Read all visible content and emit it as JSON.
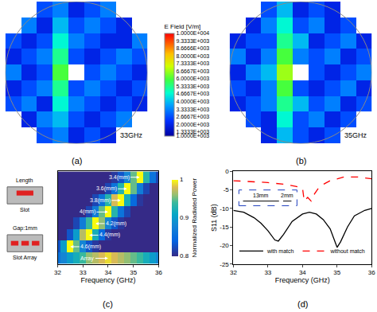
{
  "chart_data": [
    {
      "type": "heatmap",
      "panel": "(a)",
      "annotations": [
        "33GHz"
      ],
      "tick_labels": false,
      "z": [
        [
          null,
          null,
          2700,
          3300,
          2000,
          2700,
          2000,
          null,
          null
        ],
        [
          null,
          2000,
          3300,
          4000,
          2700,
          2000,
          2700,
          3300,
          null
        ],
        [
          2700,
          3300,
          2000,
          4700,
          3300,
          2700,
          2000,
          2700,
          2000
        ],
        [
          2000,
          2700,
          3300,
          5300,
          2700,
          3300,
          2700,
          2000,
          2700
        ],
        [
          3300,
          2000,
          2700,
          6000,
          null,
          2700,
          3300,
          2700,
          2000
        ],
        [
          2000,
          2700,
          3300,
          5300,
          2700,
          2000,
          2700,
          3300,
          2700
        ],
        [
          2700,
          2000,
          2700,
          4700,
          3300,
          2700,
          2000,
          2000,
          3300
        ],
        [
          null,
          3300,
          2000,
          4000,
          2700,
          3300,
          2700,
          2000,
          null
        ],
        [
          null,
          null,
          2700,
          3300,
          2000,
          2700,
          3300,
          null,
          null
        ]
      ]
    },
    {
      "type": "heatmap",
      "panel": "(b)",
      "annotations": [
        "35GHz"
      ],
      "tick_labels": false,
      "z": [
        [
          null,
          null,
          2000,
          4000,
          2700,
          2000,
          2700,
          null,
          null
        ],
        [
          null,
          2700,
          2000,
          4700,
          2700,
          3300,
          2000,
          2700,
          null
        ],
        [
          2000,
          2700,
          3300,
          5300,
          4000,
          2700,
          3300,
          2000,
          2700
        ],
        [
          2700,
          2000,
          3300,
          6000,
          2700,
          2000,
          2700,
          3300,
          2000
        ],
        [
          2000,
          3300,
          4000,
          6700,
          null,
          2700,
          2000,
          2700,
          3300
        ],
        [
          3300,
          2000,
          3300,
          6000,
          3300,
          2700,
          3300,
          2000,
          2700
        ],
        [
          2000,
          2700,
          2700,
          5300,
          4000,
          2000,
          2700,
          3300,
          2000
        ],
        [
          null,
          2000,
          3300,
          4700,
          2700,
          3300,
          2000,
          2700,
          null
        ],
        [
          null,
          null,
          2700,
          4000,
          2000,
          2700,
          2000,
          null,
          null
        ]
      ]
    },
    {
      "type": "colorbar",
      "title": "E Field [V/m]",
      "range": [
        1000,
        10000
      ],
      "ticks": [
        {
          "value": 10000,
          "label": "1.0000E+004"
        },
        {
          "value": 9333.3,
          "label": "9.3333E+003"
        },
        {
          "value": 8666.6,
          "label": "8.6666E+003"
        },
        {
          "value": 8000,
          "label": "8.0000E+003"
        },
        {
          "value": 7333.3,
          "label": "7.3333E+003"
        },
        {
          "value": 6666.7,
          "label": "6.6667E+003"
        },
        {
          "value": 6000,
          "label": "6.0000E+003"
        },
        {
          "value": 5333.3,
          "label": "5.3333E+003"
        },
        {
          "value": 4666.7,
          "label": "4.6667E+003"
        },
        {
          "value": 4000,
          "label": "4.0000E+003"
        },
        {
          "value": 3333.3,
          "label": "3.3333E+003"
        },
        {
          "value": 2666.7,
          "label": "2.6667E+003"
        },
        {
          "value": 2000,
          "label": "2.0000E+003"
        },
        {
          "value": 1333.3,
          "label": "1.3333E+003"
        },
        {
          "value": 1000,
          "label": "1.0000E+003"
        }
      ]
    },
    {
      "type": "heatmap",
      "panel": "(c)",
      "xlabel": "Frequency (GHz)",
      "tick_labels": "x",
      "xlim": [
        32,
        36
      ],
      "xticks": [
        32,
        33,
        34,
        35,
        36
      ],
      "x": [
        32,
        32.25,
        32.5,
        32.75,
        33,
        33.25,
        33.5,
        33.75,
        34,
        34.25,
        34.5,
        34.75,
        35,
        35.25,
        35.5,
        35.75,
        36
      ],
      "rows": [
        {
          "label": "3.4(mm)",
          "values": [
            0.8,
            0.8,
            0.8,
            0.8,
            0.8,
            0.8,
            0.8,
            0.8,
            0.8,
            0.81,
            0.83,
            0.88,
            0.95,
            1,
            0.93,
            0.86,
            0.82
          ]
        },
        {
          "label": "3.6(mm)",
          "values": [
            0.8,
            0.8,
            0.8,
            0.8,
            0.8,
            0.8,
            0.8,
            0.8,
            0.82,
            0.86,
            0.93,
            1,
            0.95,
            0.87,
            0.82,
            0.8,
            0.8
          ]
        },
        {
          "label": "3.8(mm)",
          "values": [
            0.8,
            0.8,
            0.8,
            0.8,
            0.8,
            0.8,
            0.82,
            0.86,
            0.93,
            0.98,
            1,
            0.92,
            0.85,
            0.81,
            0.8,
            0.8,
            0.8
          ]
        },
        {
          "label": "4(mm)",
          "values": [
            0.8,
            0.8,
            0.8,
            0.8,
            0.8,
            0.82,
            0.87,
            0.95,
            1,
            0.93,
            0.86,
            0.82,
            0.8,
            0.8,
            0.8,
            0.8,
            0.8
          ]
        },
        {
          "label": "4.2(mm)",
          "values": [
            0.8,
            0.8,
            0.8,
            0.82,
            0.87,
            0.94,
            1,
            0.96,
            0.88,
            0.83,
            0.81,
            0.8,
            0.8,
            0.8,
            0.8,
            0.8,
            0.8
          ]
        },
        {
          "label": "4.4(mm)",
          "values": [
            0.8,
            0.8,
            0.83,
            0.9,
            0.97,
            1,
            0.92,
            0.85,
            0.81,
            0.8,
            0.8,
            0.8,
            0.8,
            0.8,
            0.8,
            0.8,
            0.8
          ]
        },
        {
          "label": "4.6(mm)",
          "values": [
            0.83,
            0.9,
            1,
            0.95,
            0.88,
            0.83,
            0.81,
            0.8,
            0.8,
            0.8,
            0.8,
            0.8,
            0.8,
            0.8,
            0.8,
            0.8,
            0.8
          ]
        },
        {
          "label": "Array",
          "values": [
            0.86,
            0.88,
            0.9,
            0.92,
            0.94,
            0.96,
            0.97,
            0.98,
            0.99,
            0.98,
            0.97,
            0.96,
            0.95,
            0.94,
            0.92,
            0.9,
            0.88
          ]
        }
      ],
      "colorbar": {
        "title": "Normalized Radiated Power",
        "range": [
          0.8,
          1
        ],
        "ticks": [
          0.8,
          0.9,
          1
        ]
      },
      "annotations": [
        "Length",
        "Slot",
        "Gap:1mm",
        "Slot Array"
      ]
    },
    {
      "type": "line",
      "panel": "(d)",
      "xlabel": "Frequency (GHz)",
      "ylabel": "S11 (dB)",
      "xlim": [
        32,
        36
      ],
      "xticks": [
        32,
        33,
        34,
        35,
        36
      ],
      "ylim": [
        -25,
        0
      ],
      "yticks": [
        -25,
        -20,
        -15,
        -10,
        -5,
        0
      ],
      "legend": "lower right",
      "annotations": [
        "13mm",
        "2mm"
      ],
      "series": [
        {
          "name": "with match",
          "color": "#000000",
          "line_style": "solid",
          "x": [
            32,
            32.3,
            32.6,
            32.8,
            33,
            33.2,
            33.3,
            33.45,
            33.7,
            34,
            34.2,
            34.4,
            34.6,
            34.8,
            35,
            35.1,
            35.3,
            35.5,
            35.8,
            36
          ],
          "values": [
            -10.5,
            -11,
            -12.5,
            -14,
            -16,
            -18.5,
            -18.8,
            -17,
            -13.5,
            -11.5,
            -11,
            -11.5,
            -13,
            -15.5,
            -20.5,
            -19,
            -15,
            -12,
            -10.5,
            -10
          ]
        },
        {
          "name": "without match",
          "color": "#ff0000",
          "line_style": "dash",
          "x": [
            32,
            32.5,
            33,
            33.5,
            33.8,
            34,
            34.05,
            34.15,
            34.25,
            34.35,
            34.5,
            34.8,
            35.2,
            35.6,
            36
          ],
          "values": [
            -2.5,
            -2.7,
            -3,
            -3.5,
            -4,
            -4.5,
            -8,
            -7,
            -8,
            -6,
            -4,
            -2.5,
            -1.5,
            -1.5,
            -2
          ]
        }
      ]
    }
  ]
}
